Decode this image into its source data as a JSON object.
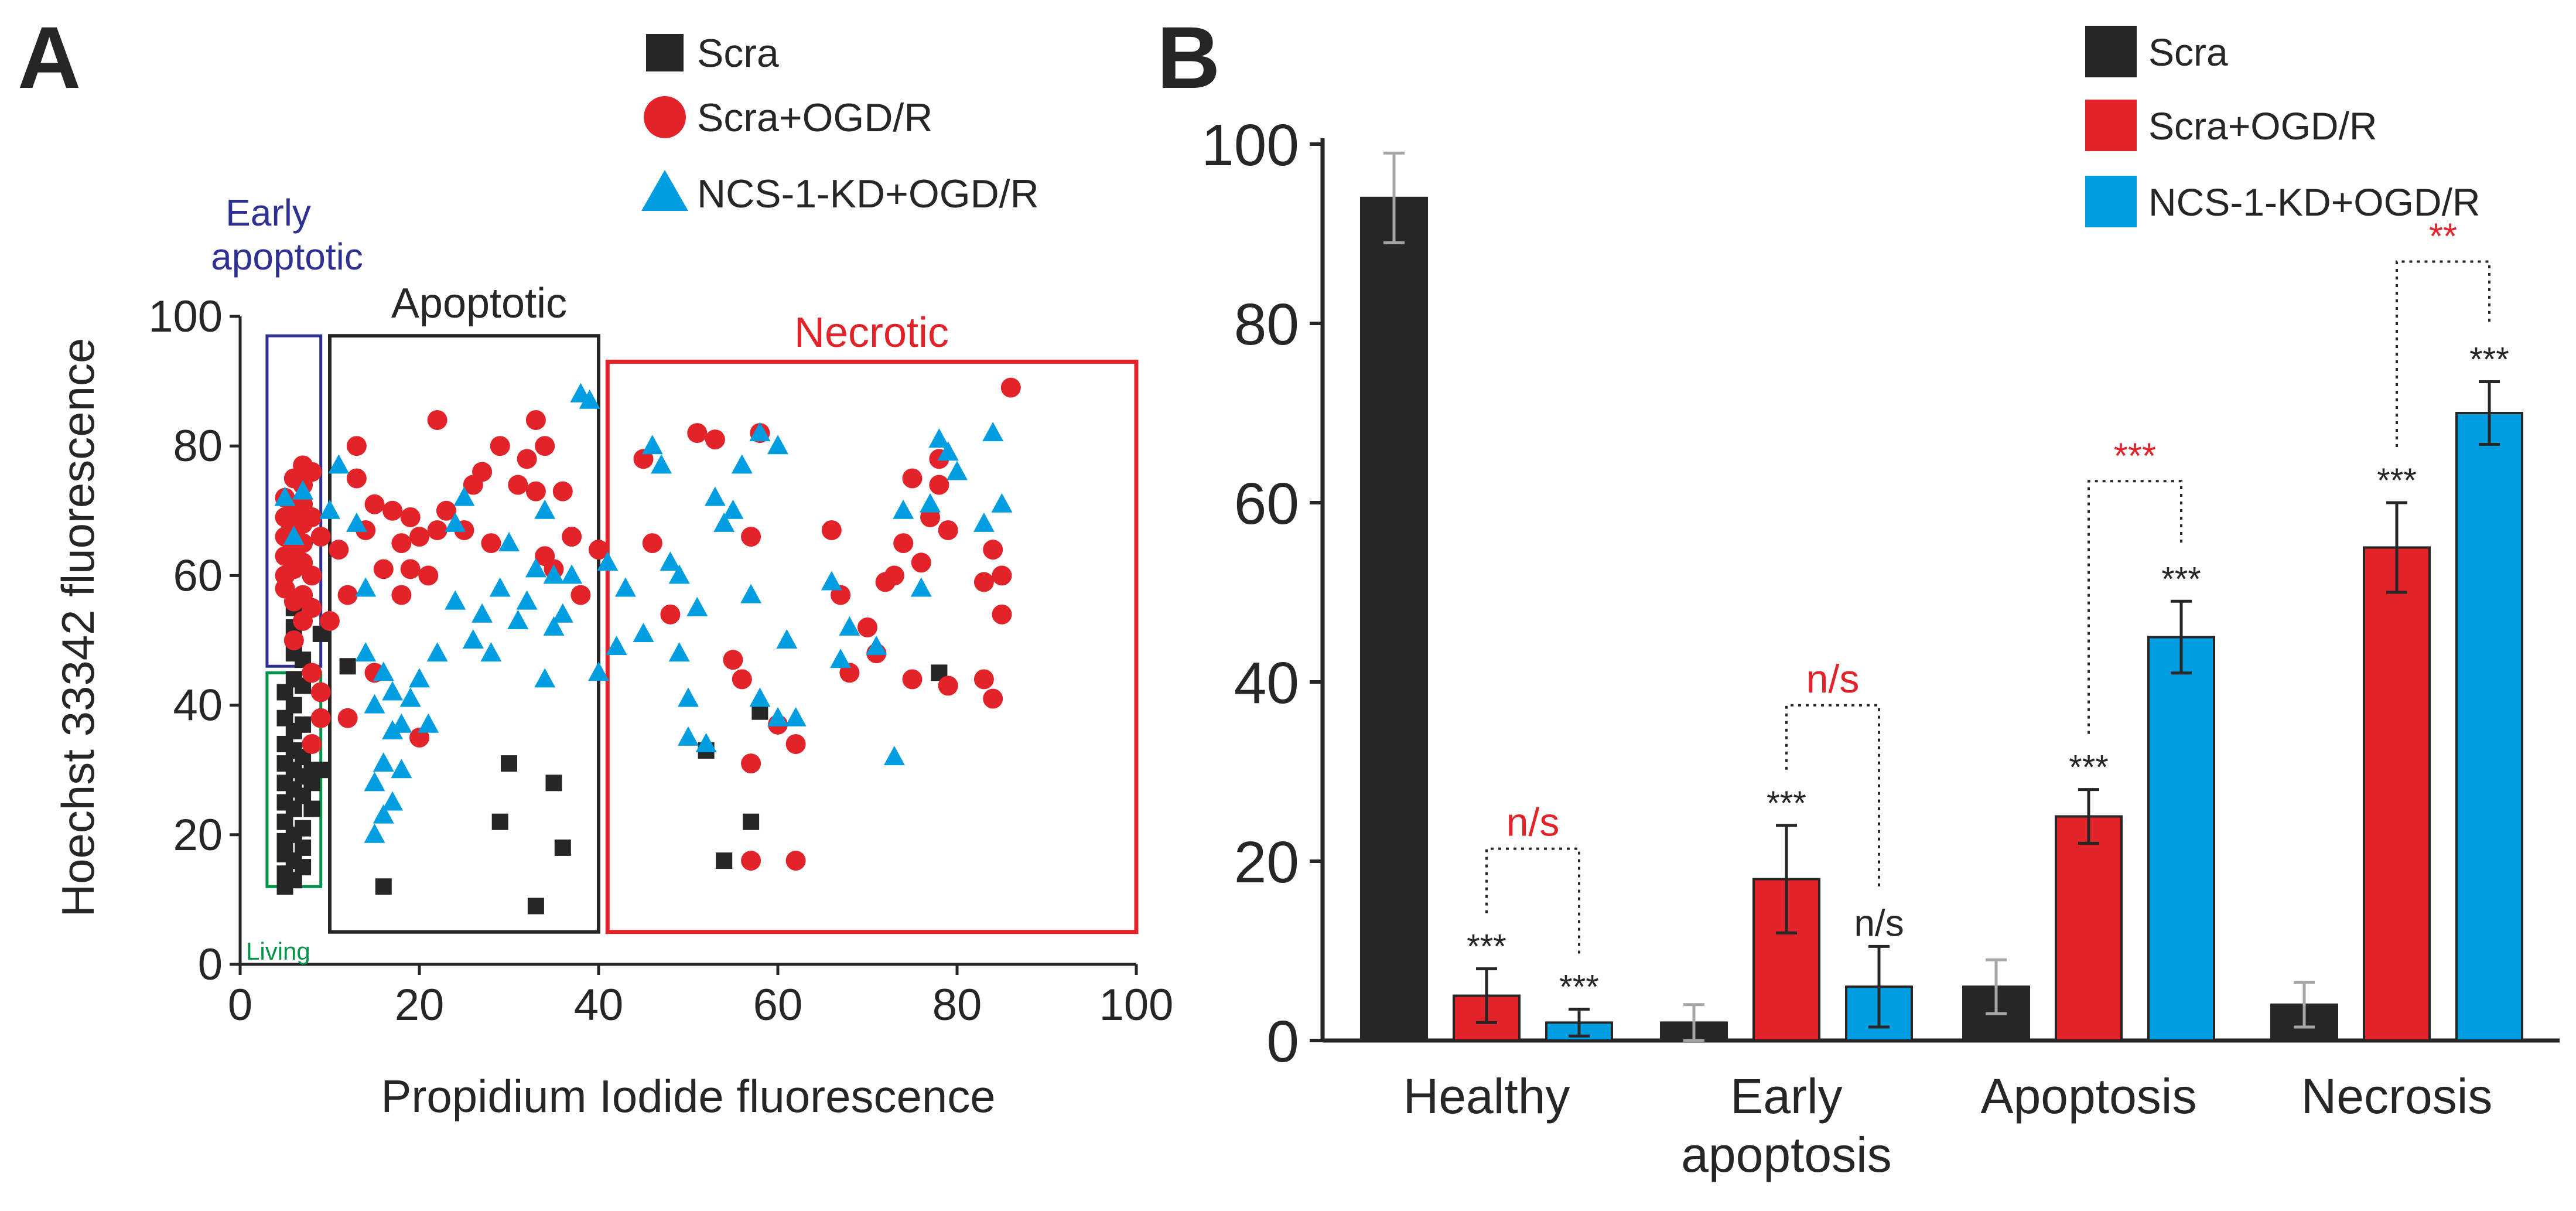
{
  "panels": {
    "a": {
      "letter": "A"
    },
    "b": {
      "letter": "B"
    }
  },
  "colors": {
    "scra": "#262626",
    "ogd": "#e2232a",
    "kd": "#009ee0",
    "early_box": "#2e3192",
    "living_box": "#00934a",
    "necrotic_box": "#e2232a",
    "apoptotic_box": "#262626",
    "sig_red": "#e2232a"
  },
  "chart_data": [
    {
      "type": "scatter",
      "title": "",
      "xlabel": "Propidium Iodide  fluorescence",
      "ylabel": "Hoechst 33342  fluorescence",
      "xlim": [
        0,
        100
      ],
      "ylim": [
        0,
        100
      ],
      "xticks": [
        "0",
        "20",
        "40",
        "60",
        "80",
        "100"
      ],
      "yticks": [
        "0",
        "20",
        "40",
        "60",
        "80",
        "100"
      ],
      "legend_position": "top",
      "legend": [
        "Scra",
        "Scra+OGD/R",
        "NCS-1-KD+OGD/R"
      ],
      "regions": [
        {
          "name": "Early apoptotic",
          "label": "Early\napoptotic",
          "x": [
            3,
            9
          ],
          "y": [
            46,
            97
          ]
        },
        {
          "name": "Living",
          "label": "Living",
          "x": [
            3,
            9
          ],
          "y": [
            12,
            45
          ]
        },
        {
          "name": "Apoptotic",
          "label": "Apoptotic",
          "x": [
            10,
            40
          ],
          "y": [
            5,
            97
          ]
        },
        {
          "name": "Necrotic",
          "label": "Necrotic",
          "x": [
            41,
            100
          ],
          "y": [
            5,
            93
          ]
        }
      ],
      "series": [
        {
          "name": "Scra",
          "marker": "square",
          "points": [
            [
              5,
              12
            ],
            [
              5,
              14
            ],
            [
              5,
              17
            ],
            [
              5,
              19
            ],
            [
              5,
              22
            ],
            [
              5,
              25
            ],
            [
              5,
              28
            ],
            [
              5,
              31
            ],
            [
              5,
              34
            ],
            [
              5,
              38
            ],
            [
              5,
              42
            ],
            [
              6,
              13
            ],
            [
              6,
              16
            ],
            [
              6,
              20
            ],
            [
              6,
              24
            ],
            [
              6,
              27
            ],
            [
              6,
              30
            ],
            [
              6,
              33
            ],
            [
              6,
              36
            ],
            [
              6,
              40
            ],
            [
              6,
              44
            ],
            [
              6,
              48
            ],
            [
              6,
              52
            ],
            [
              6,
              55
            ],
            [
              7,
              15
            ],
            [
              7,
              18
            ],
            [
              7,
              21
            ],
            [
              7,
              26
            ],
            [
              7,
              29
            ],
            [
              7,
              32
            ],
            [
              7,
              37
            ],
            [
              7,
              43
            ],
            [
              7,
              47
            ],
            [
              8,
              24
            ],
            [
              8,
              28
            ],
            [
              8,
              30
            ],
            [
              9,
              30
            ],
            [
              9,
              51
            ],
            [
              12,
              46
            ],
            [
              16,
              12
            ],
            [
              29,
              22
            ],
            [
              30,
              31
            ],
            [
              33,
              9
            ],
            [
              35,
              28
            ],
            [
              36,
              18
            ],
            [
              52,
              33
            ],
            [
              54,
              16
            ],
            [
              57,
              22
            ],
            [
              58,
              39
            ],
            [
              78,
              45
            ]
          ]
        },
        {
          "name": "Scra+OGD/R",
          "marker": "circle",
          "points": [
            [
              5,
              58
            ],
            [
              5,
              60
            ],
            [
              5,
              63
            ],
            [
              5,
              66
            ],
            [
              5,
              69
            ],
            [
              5,
              72
            ],
            [
              6,
              50
            ],
            [
              6,
              56
            ],
            [
              6,
              61
            ],
            [
              6,
              64
            ],
            [
              6,
              67
            ],
            [
              6,
              70
            ],
            [
              6,
              75
            ],
            [
              7,
              53
            ],
            [
              7,
              57
            ],
            [
              7,
              62
            ],
            [
              7,
              65
            ],
            [
              7,
              68
            ],
            [
              7,
              71
            ],
            [
              7,
              74
            ],
            [
              7,
              77
            ],
            [
              8,
              34
            ],
            [
              8,
              45
            ],
            [
              8,
              55
            ],
            [
              8,
              60
            ],
            [
              8,
              69
            ],
            [
              8,
              76
            ],
            [
              9,
              38
            ],
            [
              9,
              42
            ],
            [
              9,
              66
            ],
            [
              10,
              53
            ],
            [
              11,
              64
            ],
            [
              12,
              38
            ],
            [
              12,
              57
            ],
            [
              13,
              75
            ],
            [
              13,
              80
            ],
            [
              14,
              67
            ],
            [
              15,
              45
            ],
            [
              15,
              71
            ],
            [
              16,
              61
            ],
            [
              17,
              70
            ],
            [
              18,
              57
            ],
            [
              18,
              65
            ],
            [
              19,
              61
            ],
            [
              19,
              69
            ],
            [
              20,
              35
            ],
            [
              20,
              66
            ],
            [
              21,
              60
            ],
            [
              22,
              67
            ],
            [
              22,
              84
            ],
            [
              23,
              70
            ],
            [
              25,
              67
            ],
            [
              26,
              74
            ],
            [
              27,
              76
            ],
            [
              28,
              65
            ],
            [
              29,
              80
            ],
            [
              31,
              74
            ],
            [
              32,
              78
            ],
            [
              33,
              73
            ],
            [
              33,
              84
            ],
            [
              34,
              80
            ],
            [
              34,
              63
            ],
            [
              35,
              61
            ],
            [
              36,
              73
            ],
            [
              37,
              66
            ],
            [
              38,
              57
            ],
            [
              40,
              64
            ],
            [
              45,
              78
            ],
            [
              46,
              65
            ],
            [
              48,
              54
            ],
            [
              51,
              82
            ],
            [
              53,
              81
            ],
            [
              55,
              47
            ],
            [
              56,
              44
            ],
            [
              57,
              66
            ],
            [
              57,
              31
            ],
            [
              58,
              82
            ],
            [
              60,
              37
            ],
            [
              62,
              34
            ],
            [
              62,
              16
            ],
            [
              66,
              67
            ],
            [
              67,
              57
            ],
            [
              68,
              45
            ],
            [
              70,
              52
            ],
            [
              71,
              48
            ],
            [
              72,
              59
            ],
            [
              73,
              60
            ],
            [
              74,
              65
            ],
            [
              75,
              75
            ],
            [
              75,
              44
            ],
            [
              76,
              62
            ],
            [
              77,
              69
            ],
            [
              78,
              74
            ],
            [
              78,
              78
            ],
            [
              79,
              43
            ],
            [
              79,
              67
            ],
            [
              83,
              59
            ],
            [
              83,
              44
            ],
            [
              84,
              41
            ],
            [
              84,
              64
            ],
            [
              85,
              60
            ],
            [
              85,
              54
            ],
            [
              86,
              89
            ],
            [
              57,
              16
            ]
          ]
        },
        {
          "name": "NCS-1-KD+OGD/R",
          "marker": "triangle",
          "points": [
            [
              5,
              72
            ],
            [
              6,
              66
            ],
            [
              7,
              73
            ],
            [
              10,
              70
            ],
            [
              11,
              77
            ],
            [
              13,
              68
            ],
            [
              14,
              58
            ],
            [
              14,
              48
            ],
            [
              15,
              20
            ],
            [
              15,
              28
            ],
            [
              15,
              40
            ],
            [
              16,
              23
            ],
            [
              16,
              31
            ],
            [
              16,
              45
            ],
            [
              17,
              25
            ],
            [
              17,
              36
            ],
            [
              17,
              42
            ],
            [
              18,
              30
            ],
            [
              18,
              37
            ],
            [
              19,
              41
            ],
            [
              20,
              44
            ],
            [
              21,
              37
            ],
            [
              22,
              48
            ],
            [
              24,
              56
            ],
            [
              24,
              68
            ],
            [
              25,
              72
            ],
            [
              26,
              50
            ],
            [
              27,
              54
            ],
            [
              28,
              48
            ],
            [
              29,
              58
            ],
            [
              30,
              65
            ],
            [
              31,
              53
            ],
            [
              32,
              56
            ],
            [
              33,
              61
            ],
            [
              34,
              44
            ],
            [
              34,
              70
            ],
            [
              35,
              60
            ],
            [
              35,
              52
            ],
            [
              36,
              54
            ],
            [
              37,
              60
            ],
            [
              38,
              88
            ],
            [
              39,
              87
            ],
            [
              40,
              45
            ],
            [
              41,
              62
            ],
            [
              42,
              49
            ],
            [
              43,
              58
            ],
            [
              45,
              51
            ],
            [
              46,
              80
            ],
            [
              47,
              77
            ],
            [
              48,
              62
            ],
            [
              49,
              48
            ],
            [
              49,
              60
            ],
            [
              50,
              41
            ],
            [
              50,
              35
            ],
            [
              51,
              55
            ],
            [
              52,
              34
            ],
            [
              53,
              72
            ],
            [
              54,
              68
            ],
            [
              55,
              70
            ],
            [
              56,
              77
            ],
            [
              57,
              57
            ],
            [
              58,
              82
            ],
            [
              58,
              41
            ],
            [
              60,
              38
            ],
            [
              60,
              80
            ],
            [
              61,
              50
            ],
            [
              62,
              38
            ],
            [
              66,
              59
            ],
            [
              67,
              47
            ],
            [
              68,
              52
            ],
            [
              71,
              49
            ],
            [
              73,
              32
            ],
            [
              74,
              70
            ],
            [
              76,
              58
            ],
            [
              77,
              71
            ],
            [
              78,
              81
            ],
            [
              79,
              79
            ],
            [
              80,
              76
            ],
            [
              83,
              68
            ],
            [
              84,
              82
            ],
            [
              85,
              71
            ]
          ]
        }
      ]
    },
    {
      "type": "bar",
      "title": "",
      "xlabel": "",
      "ylabel": "",
      "ylim": [
        0,
        100
      ],
      "yticks": [
        "0",
        "20",
        "40",
        "60",
        "80",
        "100"
      ],
      "legend_position": "top-right",
      "legend": [
        "Scra",
        "Scra+OGD/R",
        "NCS-1-KD+OGD/R"
      ],
      "categories": [
        "Healthy",
        "Early apoptosis",
        "Apoptosis",
        "Necrosis"
      ],
      "category_lines": [
        [
          "Healthy"
        ],
        [
          "Early",
          "apoptosis"
        ],
        [
          "Apoptosis"
        ],
        [
          "Necrosis"
        ]
      ],
      "series": [
        {
          "name": "Scra",
          "values": [
            94,
            2,
            6,
            4
          ],
          "errors": [
            5,
            2,
            3,
            2.5
          ]
        },
        {
          "name": "Scra+OGD/R",
          "values": [
            5,
            18,
            25,
            55
          ],
          "errors": [
            3,
            6,
            3,
            5
          ]
        },
        {
          "name": "NCS-1-KD+OGD/R",
          "values": [
            2,
            6,
            45,
            70
          ],
          "errors": [
            1.5,
            4.5,
            4,
            3.5
          ]
        }
      ],
      "significance_vs_control": [
        [
          "",
          "",
          "",
          ""
        ],
        [
          "***",
          "***",
          "***",
          "***"
        ],
        [
          "***",
          "n/s",
          "***",
          "***"
        ]
      ],
      "comparisons": [
        {
          "category": "Healthy",
          "label": "n/s"
        },
        {
          "category": "Early apoptosis",
          "label": "n/s"
        },
        {
          "category": "Apoptosis",
          "label": "***"
        },
        {
          "category": "Necrosis",
          "label": "**"
        }
      ]
    }
  ]
}
